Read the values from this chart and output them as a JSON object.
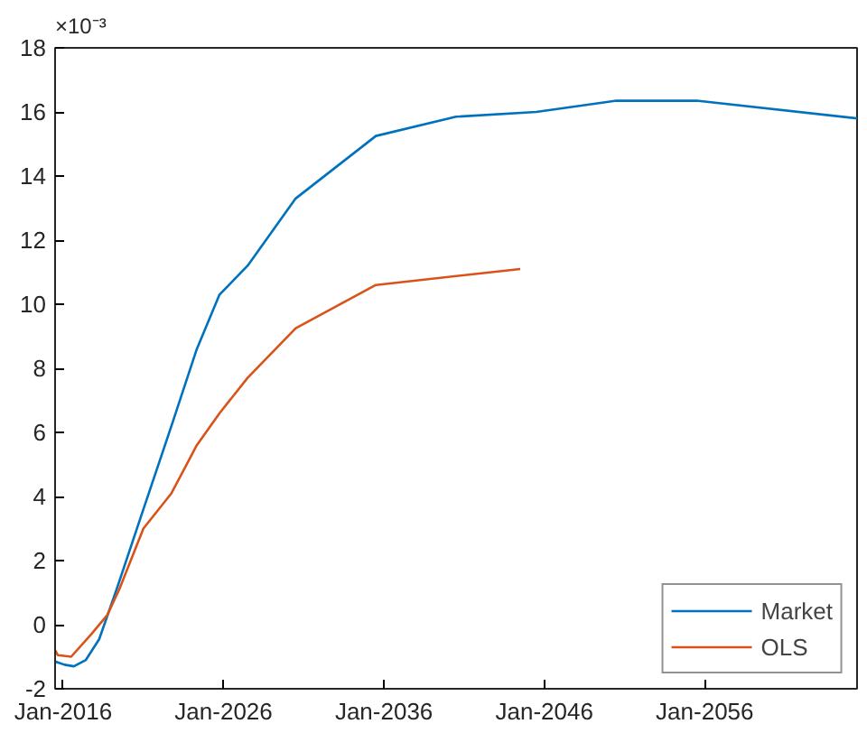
{
  "chart_data": {
    "type": "line",
    "annotations": [
      "×10⁻³"
    ],
    "xlim": [
      "2015-07",
      "2065-07"
    ],
    "xticks": [
      {
        "value": "2016-01",
        "label": "Jan-2016"
      },
      {
        "value": "2026-01",
        "label": "Jan-2026"
      },
      {
        "value": "2036-01",
        "label": "Jan-2036"
      },
      {
        "value": "2046-01",
        "label": "Jan-2046"
      },
      {
        "value": "2056-01",
        "label": "Jan-2056"
      }
    ],
    "ylim": [
      -2,
      18
    ],
    "yticks": [
      -2,
      0,
      2,
      4,
      6,
      8,
      10,
      12,
      14,
      16,
      18
    ],
    "grid": false,
    "legend": "bottom right",
    "line_style": "solid",
    "series": [
      {
        "name": "Market",
        "color": "#0072bd",
        "x": [
          "2015-07",
          "2016-02",
          "2016-09",
          "2017-06",
          "2018-04",
          "2019-05",
          "2021-01",
          "2022-10",
          "2024-05",
          "2025-10",
          "2027-07",
          "2030-07",
          "2035-07",
          "2040-07",
          "2045-07",
          "2050-07",
          "2055-07",
          "2065-07"
        ],
        "values": [
          -1.15,
          -1.25,
          -1.3,
          -1.1,
          -0.45,
          1.1,
          3.6,
          6.2,
          8.6,
          10.3,
          11.2,
          13.3,
          15.25,
          15.85,
          16.0,
          16.35,
          16.35,
          15.8
        ]
      },
      {
        "name": "OLS",
        "color": "#d95319",
        "x": [
          "2015-07",
          "2015-09",
          "2016-07",
          "2017-10",
          "2018-10",
          "2019-07",
          "2021-01",
          "2022-10",
          "2024-05",
          "2025-10",
          "2027-07",
          "2030-07",
          "2035-07",
          "2044-07"
        ],
        "values": [
          -0.8,
          -0.95,
          -1.0,
          -0.3,
          0.3,
          1.1,
          3.0,
          4.1,
          5.6,
          6.6,
          7.7,
          9.25,
          10.6,
          11.1
        ]
      }
    ]
  }
}
